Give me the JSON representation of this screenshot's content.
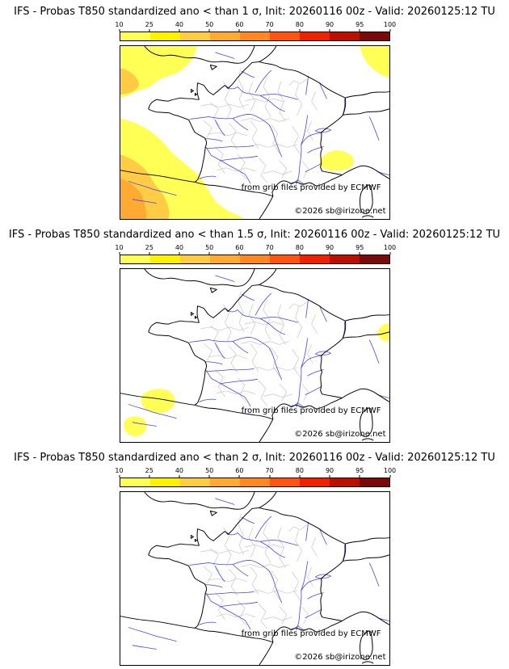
{
  "product": {
    "model": "IFS",
    "parameter": "Probas T850",
    "init": "20260116 00z",
    "valid": "20260125:12 TU"
  },
  "panels": [
    {
      "threshold_sigma": "1",
      "title": "IFS - Probas T850  standardized ano < than 1 σ, Init: 20260116 00z - Valid: 20260125:12 TU",
      "credit": "from grib files provided by ECMWF",
      "copyright": "©2026 sb@irizone.net"
    },
    {
      "threshold_sigma": "1.5",
      "title": "IFS - Probas T850  standardized ano < than 1.5 σ, Init: 20260116 00z - Valid: 20260125:12 TU",
      "credit": "from grib files provided by ECMWF",
      "copyright": "©2026 sb@irizone.net"
    },
    {
      "threshold_sigma": "2",
      "title": "IFS - Probas T850  standardized ano < than 2 σ, Init: 20260116 00z - Valid: 20260125:12 TU",
      "credit": "from grib files provided by ECMWF",
      "copyright": "©2026 sb@irizone.net"
    }
  ],
  "colorbar": {
    "tick_labels": [
      "10",
      "25",
      "40",
      "50",
      "60",
      "70",
      "80",
      "90",
      "95",
      "100"
    ],
    "segment_colors": [
      "#ffff55",
      "#fff200",
      "#ffcc44",
      "#ffaa33",
      "#ff8822",
      "#ff5511",
      "#ee2200",
      "#bb0f00",
      "#7a0a0a"
    ]
  },
  "map_colors": {
    "coast_border": "#000000",
    "rivers": "#4444ee",
    "department_lines": "#bdbdbd",
    "patch_yellow": "#ffff55",
    "patch_orange": "#ffcc44",
    "patch_deep_orange": "#ffaa33"
  }
}
